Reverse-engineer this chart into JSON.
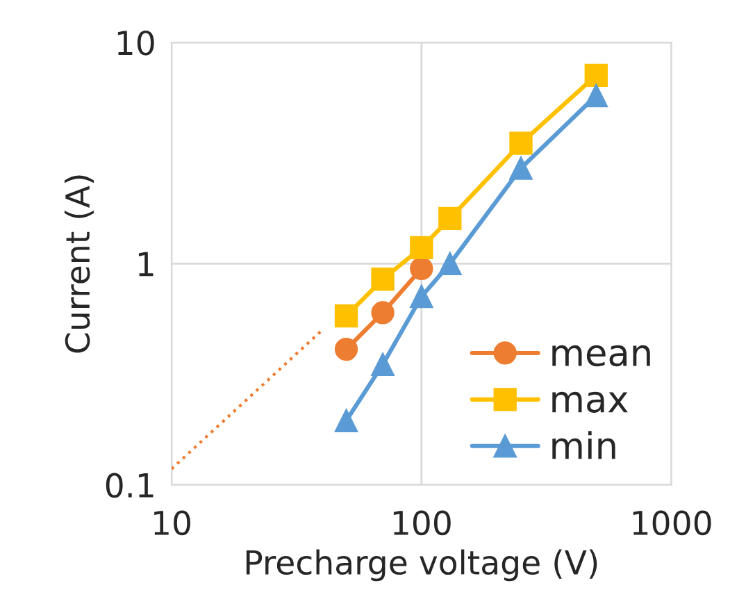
{
  "chart_data": {
    "type": "line",
    "xlabel": "Precharge voltage (V)",
    "ylabel": "Current (A)",
    "x": [
      50,
      70,
      100,
      130,
      250,
      500
    ],
    "series": [
      {
        "name": "mean",
        "color": "#ed7d31",
        "marker": "circle",
        "values": [
          0.41,
          0.6,
          0.95,
          null,
          null,
          null
        ]
      },
      {
        "name": "max",
        "color": "#ffc000",
        "marker": "square",
        "values": [
          0.58,
          0.85,
          1.18,
          1.6,
          3.5,
          7.1
        ]
      },
      {
        "name": "min",
        "color": "#5b9bd5",
        "marker": "triangle",
        "values": [
          0.195,
          0.35,
          0.71,
          1.0,
          2.7,
          5.75
        ]
      },
      {
        "type": "line",
        "color": "#ed7d31",
        "marker": "none",
        "line_style": "dotted",
        "x": [
          10,
          40
        ],
        "values": [
          0.118,
          0.5
        ]
      }
    ],
    "log": "xy",
    "xlim": [
      10,
      1000
    ],
    "xticks": [
      10,
      100,
      1000
    ],
    "ylim": [
      0.1,
      10
    ],
    "yticks": [
      0.1,
      1,
      10
    ],
    "grid": true,
    "legend": "bottom right",
    "line_style": "solid"
  }
}
